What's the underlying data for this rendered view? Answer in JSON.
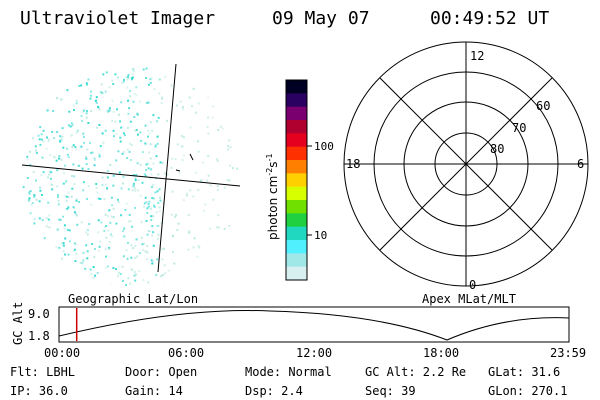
{
  "header": {
    "title": "Ultraviolet Imager",
    "date": "09 May 07",
    "time": "00:49:52 UT"
  },
  "colorbar": {
    "unit_label": "photon cm^-2 s^-1",
    "unit_main": "photon cm",
    "unit_exp1": "-2",
    "unit_mid": "s",
    "unit_exp2": "-1",
    "ticks": [
      "100",
      "10"
    ],
    "colors": [
      "#000022",
      "#2a0060",
      "#7a0070",
      "#b00030",
      "#e60020",
      "#ff3000",
      "#ff8000",
      "#ffd000",
      "#d8ff00",
      "#70e000",
      "#20d040",
      "#20d8c0",
      "#50f0ff",
      "#a0e8e8",
      "#d8f0f0"
    ]
  },
  "polar": {
    "mlt_labels": [
      "12",
      "18",
      "6",
      "0"
    ],
    "mlat_labels": [
      "60",
      "70",
      "80"
    ]
  },
  "timeline": {
    "left_label": "Geographic Lat/Lon",
    "right_label": "Apex MLat/MLT",
    "y_axis_label": "GC Alt",
    "y_ticks": [
      "9.0",
      "1.8"
    ],
    "x_ticks": [
      "00:00",
      "06:00",
      "12:00",
      "18:00",
      "23:59"
    ],
    "marker_time": "00:49:52"
  },
  "status": {
    "flt": "Flt: LBHL",
    "door": "Door: Open",
    "mode": "Mode: Normal",
    "gc_alt": "GC Alt: 2.2 Re",
    "glat": "GLat:  31.6",
    "ip": "IP: 36.0",
    "gain": "Gain: 14",
    "dsp": "Dsp:    2.4",
    "seq": "Seq: 39",
    "glon": "GLon: 270.1"
  },
  "style": {
    "accent_marker": "#d00000",
    "dot_primary": "#30d8d0",
    "dot_faint": "#b8e8e0"
  }
}
